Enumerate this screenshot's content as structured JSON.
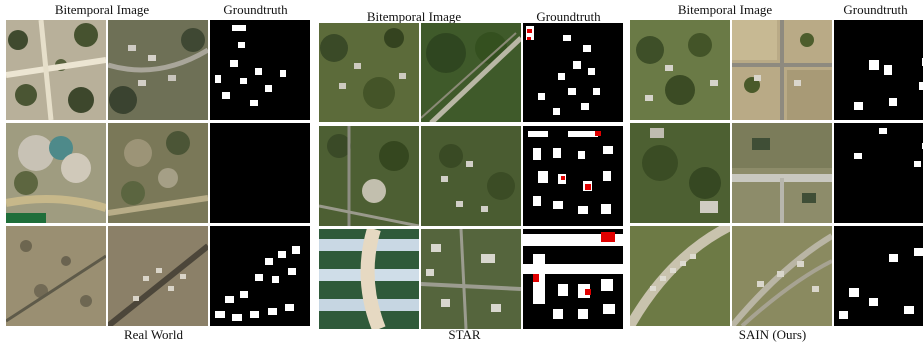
{
  "headers": {
    "bitemporal": "Bitemporal Image",
    "groundtruth": "Groundtruth"
  },
  "panels": [
    {
      "caption": "Real World"
    },
    {
      "caption": "STAR"
    },
    {
      "caption": "SAIN (Ours)"
    }
  ],
  "colors": {
    "groundtruth_bg": "#000000",
    "change": "#ffffff",
    "highlight": "#e00000"
  }
}
